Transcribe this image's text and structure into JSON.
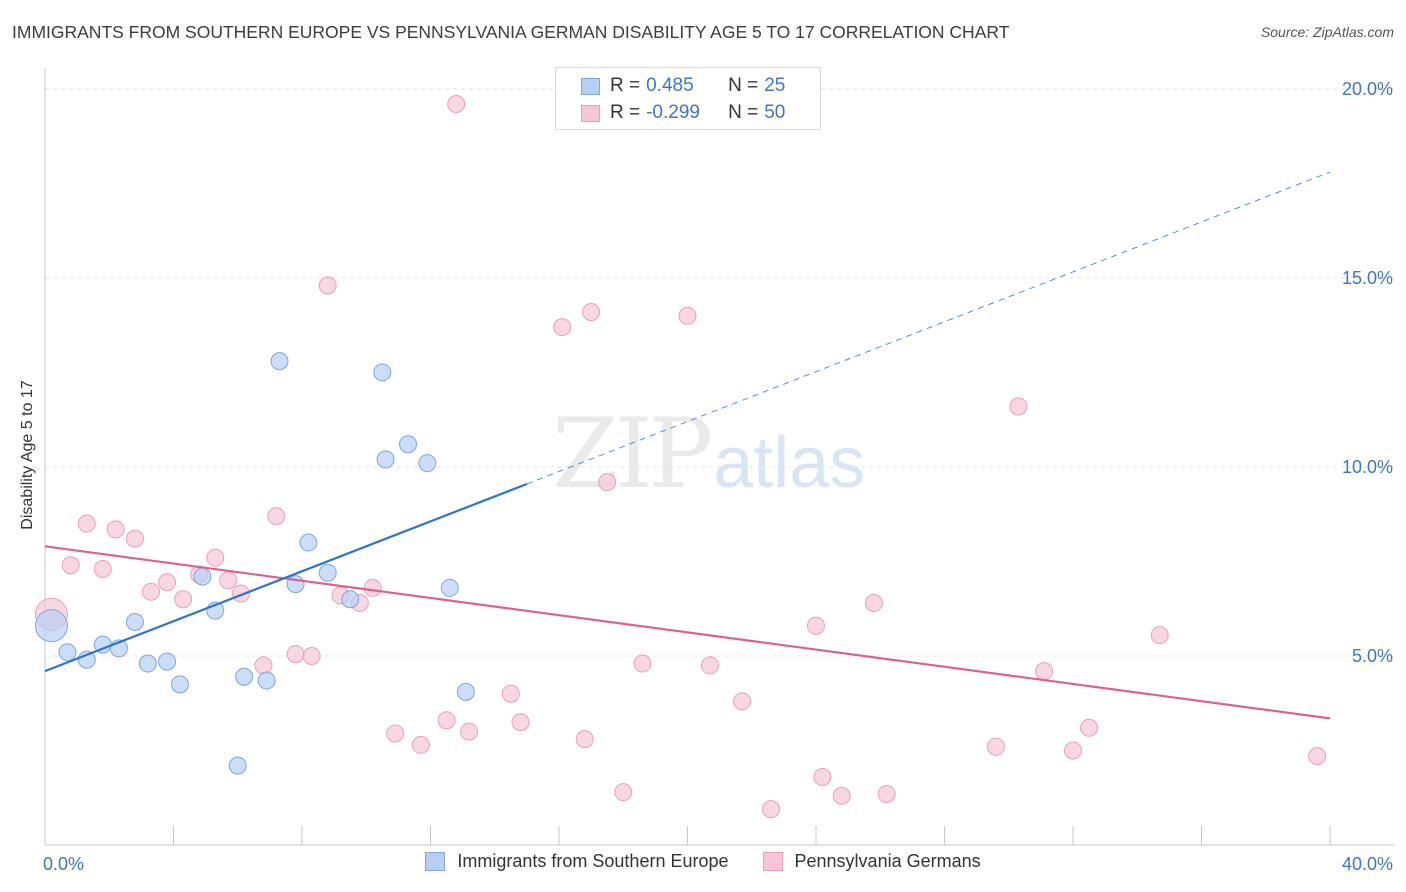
{
  "title": "IMMIGRANTS FROM SOUTHERN EUROPE VS PENNSYLVANIA GERMAN DISABILITY AGE 5 TO 17 CORRELATION CHART",
  "source": "Source: ZipAtlas.com",
  "watermark": {
    "zip": "ZIP",
    "atlas": "atlas"
  },
  "colors": {
    "blue_fill": "#b6d0f3",
    "blue_stroke": "#7ea6df",
    "blue_line": "#2e73d2",
    "pink_fill": "#f7c6d6",
    "pink_stroke": "#eaa0b8",
    "pink_line": "#e0608d",
    "grid": "#e2e2e2",
    "tick_text": "#3f74c9"
  },
  "stats": [
    {
      "series": "Immigrants from Southern Europe",
      "r_label": "R =",
      "r_value": "0.485",
      "n_label": "N =",
      "n_value": "25",
      "color": "blue"
    },
    {
      "series": "Pennsylvania Germans",
      "r_label": "R =",
      "r_value": "-0.299",
      "n_label": "N =",
      "n_value": "50",
      "color": "pink"
    }
  ],
  "legend": [
    {
      "label": "Immigrants from Southern Europe",
      "color": "blue"
    },
    {
      "label": "Pennsylvania Germans",
      "color": "pink"
    }
  ],
  "chart_data": {
    "type": "scatter",
    "title": "IMMIGRANTS FROM SOUTHERN EUROPE VS PENNSYLVANIA GERMAN DISABILITY AGE 5 TO 17 CORRELATION CHART",
    "xlabel": "",
    "ylabel": "Disability Age 5 to 17",
    "xlim": [
      0,
      40
    ],
    "ylim": [
      0,
      20.5
    ],
    "x_tick_labels": [
      "0.0%",
      "40.0%"
    ],
    "y_ticks": [
      5,
      10,
      15,
      20
    ],
    "y_tick_labels": [
      "5.0%",
      "10.0%",
      "15.0%",
      "20.0%"
    ],
    "series": [
      {
        "name": "Immigrants from Southern Europe",
        "color": "blue",
        "points": [
          {
            "x": 0.2,
            "y": 5.8,
            "size": "large"
          },
          {
            "x": 0.7,
            "y": 5.1
          },
          {
            "x": 1.3,
            "y": 4.9
          },
          {
            "x": 1.8,
            "y": 5.3
          },
          {
            "x": 2.3,
            "y": 5.2
          },
          {
            "x": 2.8,
            "y": 5.9
          },
          {
            "x": 3.2,
            "y": 4.8
          },
          {
            "x": 3.8,
            "y": 4.85
          },
          {
            "x": 4.2,
            "y": 4.25
          },
          {
            "x": 4.9,
            "y": 7.1
          },
          {
            "x": 5.3,
            "y": 6.2
          },
          {
            "x": 6.0,
            "y": 2.1
          },
          {
            "x": 6.2,
            "y": 4.45
          },
          {
            "x": 6.9,
            "y": 4.35
          },
          {
            "x": 7.3,
            "y": 12.8
          },
          {
            "x": 7.8,
            "y": 6.9
          },
          {
            "x": 8.2,
            "y": 8.0
          },
          {
            "x": 8.8,
            "y": 7.2
          },
          {
            "x": 9.5,
            "y": 6.5
          },
          {
            "x": 10.5,
            "y": 12.5
          },
          {
            "x": 10.6,
            "y": 10.2
          },
          {
            "x": 11.3,
            "y": 10.6
          },
          {
            "x": 11.9,
            "y": 10.1
          },
          {
            "x": 12.6,
            "y": 6.8
          },
          {
            "x": 13.1,
            "y": 4.05
          }
        ],
        "trend": {
          "x0": 0,
          "y0": 4.6,
          "x1": 15,
          "y1": 9.55,
          "dashed_to_x": 40,
          "dashed_to_y": 17.8
        }
      },
      {
        "name": "Pennsylvania Germans",
        "color": "pink",
        "points": [
          {
            "x": 0.2,
            "y": 6.1,
            "size": "large"
          },
          {
            "x": 0.8,
            "y": 7.4
          },
          {
            "x": 1.3,
            "y": 8.5
          },
          {
            "x": 1.8,
            "y": 7.3
          },
          {
            "x": 2.2,
            "y": 8.35
          },
          {
            "x": 2.8,
            "y": 8.1
          },
          {
            "x": 3.3,
            "y": 6.7
          },
          {
            "x": 3.8,
            "y": 6.95
          },
          {
            "x": 4.3,
            "y": 6.5
          },
          {
            "x": 4.8,
            "y": 7.15
          },
          {
            "x": 5.3,
            "y": 7.6
          },
          {
            "x": 5.7,
            "y": 7.0
          },
          {
            "x": 6.1,
            "y": 6.65
          },
          {
            "x": 6.8,
            "y": 4.75
          },
          {
            "x": 7.2,
            "y": 8.7
          },
          {
            "x": 7.8,
            "y": 5.05
          },
          {
            "x": 8.3,
            "y": 5.0
          },
          {
            "x": 8.8,
            "y": 14.8
          },
          {
            "x": 9.2,
            "y": 6.6
          },
          {
            "x": 9.8,
            "y": 6.4
          },
          {
            "x": 10.2,
            "y": 6.8
          },
          {
            "x": 10.9,
            "y": 2.95
          },
          {
            "x": 11.7,
            "y": 2.65
          },
          {
            "x": 12.5,
            "y": 3.3
          },
          {
            "x": 13.2,
            "y": 3.0
          },
          {
            "x": 12.8,
            "y": 19.6
          },
          {
            "x": 14.5,
            "y": 4.0
          },
          {
            "x": 14.8,
            "y": 3.25
          },
          {
            "x": 16.1,
            "y": 13.7
          },
          {
            "x": 16.8,
            "y": 2.8
          },
          {
            "x": 17.0,
            "y": 14.1
          },
          {
            "x": 17.5,
            "y": 9.6
          },
          {
            "x": 18.0,
            "y": 1.4
          },
          {
            "x": 18.6,
            "y": 4.8
          },
          {
            "x": 20.0,
            "y": 14.0
          },
          {
            "x": 20.7,
            "y": 4.75
          },
          {
            "x": 21.7,
            "y": 3.8
          },
          {
            "x": 22.6,
            "y": 0.95
          },
          {
            "x": 24.0,
            "y": 5.8
          },
          {
            "x": 24.2,
            "y": 1.8
          },
          {
            "x": 24.8,
            "y": 1.3
          },
          {
            "x": 25.8,
            "y": 6.4
          },
          {
            "x": 26.2,
            "y": 1.35
          },
          {
            "x": 29.6,
            "y": 2.6
          },
          {
            "x": 30.3,
            "y": 11.6
          },
          {
            "x": 31.1,
            "y": 4.6
          },
          {
            "x": 32.0,
            "y": 2.5
          },
          {
            "x": 32.5,
            "y": 3.1
          },
          {
            "x": 34.7,
            "y": 5.55
          },
          {
            "x": 39.6,
            "y": 2.35
          }
        ],
        "trend": {
          "x0": 0,
          "y0": 7.9,
          "x1": 40,
          "y1": 3.35
        }
      }
    ]
  }
}
